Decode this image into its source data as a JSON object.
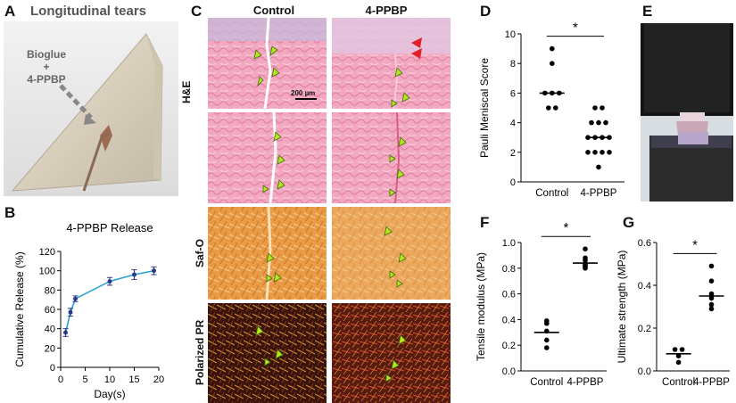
{
  "panels": {
    "A": {
      "letter": "A",
      "title": "Longitudinal tears",
      "annotation_lines": [
        "Bioglue",
        "+",
        "4-PPBP"
      ]
    },
    "B": {
      "letter": "B"
    },
    "C": {
      "letter": "C",
      "col_labels": [
        "Control",
        "4-PPBP"
      ],
      "row_labels": [
        "H&E",
        "Saf-O",
        "Polarized PR"
      ],
      "scalebar": "200 µm"
    },
    "D": {
      "letter": "D"
    },
    "E": {
      "letter": "E"
    },
    "F": {
      "letter": "F"
    },
    "G": {
      "letter": "G"
    }
  },
  "colors": {
    "line": "#29a3d6",
    "marker": "#2a3a8a",
    "dot": "#000000",
    "arrow_green": "#b5e61d",
    "arrow_red": "#e0202a"
  },
  "chart_data": [
    {
      "id": "B",
      "type": "line",
      "title": "4-PPBP Release",
      "xlabel": "Day(s)",
      "ylabel": "Cumulative Release (%)",
      "xlim": [
        0,
        20
      ],
      "ylim": [
        0,
        120
      ],
      "xticks": [
        0,
        5,
        10,
        15,
        20
      ],
      "yticks": [
        0,
        20,
        40,
        60,
        80,
        100,
        120
      ],
      "series": [
        {
          "x": [
            1,
            2,
            3,
            10,
            15,
            19
          ],
          "y": [
            36,
            57,
            71,
            89,
            96,
            100
          ],
          "err": [
            4,
            4,
            3,
            4,
            5,
            4
          ]
        }
      ]
    },
    {
      "id": "D",
      "type": "scatter",
      "ylabel": "Pauli Meniscal Score",
      "categories": [
        "Control",
        "4-PPBP"
      ],
      "ylim": [
        0,
        10
      ],
      "yticks": [
        0,
        2,
        4,
        6,
        8,
        10
      ],
      "significance": "*",
      "series": [
        {
          "category": "Control",
          "values": [
            9,
            8,
            6,
            6,
            6,
            5,
            5
          ],
          "median": 6
        },
        {
          "category": "4-PPBP",
          "values": [
            5,
            5,
            4,
            4,
            4,
            3,
            3,
            3,
            3,
            2,
            2,
            2,
            2,
            1
          ],
          "median": 3
        }
      ]
    },
    {
      "id": "F",
      "type": "scatter",
      "ylabel": "Tensile modulus (MPa)",
      "categories": [
        "Control",
        "4-PPBP"
      ],
      "ylim": [
        0,
        1.0
      ],
      "yticks": [
        0.0,
        0.2,
        0.4,
        0.6,
        0.8,
        1.0
      ],
      "significance": "*",
      "series": [
        {
          "category": "Control",
          "values": [
            0.39,
            0.37,
            0.31,
            0.24,
            0.18
          ],
          "median": 0.3
        },
        {
          "category": "4-PPBP",
          "values": [
            0.95,
            0.88,
            0.86,
            0.83,
            0.82,
            0.81,
            0.8
          ],
          "median": 0.84
        }
      ]
    },
    {
      "id": "G",
      "type": "scatter",
      "ylabel": "Ultimate strength (MPa)",
      "categories": [
        "Control",
        "4-PPBP"
      ],
      "ylim": [
        0,
        0.6
      ],
      "yticks": [
        0.0,
        0.2,
        0.4,
        0.6
      ],
      "significance": "*",
      "series": [
        {
          "category": "Control",
          "values": [
            0.1,
            0.1,
            0.07,
            0.04
          ],
          "median": 0.08
        },
        {
          "category": "4-PPBP",
          "values": [
            0.49,
            0.42,
            0.36,
            0.35,
            0.34,
            0.31,
            0.29
          ],
          "median": 0.35
        }
      ]
    }
  ]
}
